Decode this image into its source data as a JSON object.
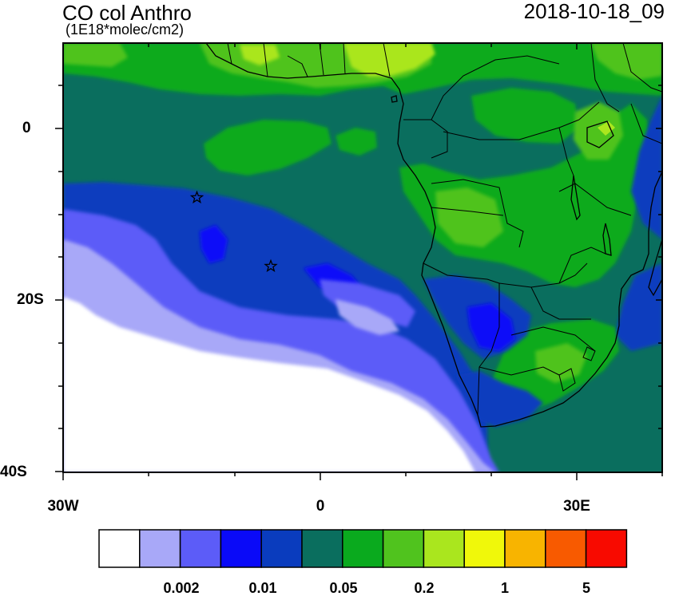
{
  "header": {
    "title": "CO col Anthro",
    "units": "(1E18*molec/cm2)",
    "valid_time": "2018-10-18_09"
  },
  "axes": {
    "y_labels": [
      {
        "value": 0,
        "text": "0"
      },
      {
        "value": -20,
        "text": "20S"
      },
      {
        "value": -40,
        "text": "40S"
      }
    ],
    "x_labels": [
      {
        "value": -30,
        "text": "30W"
      },
      {
        "value": 0,
        "text": "0"
      },
      {
        "value": 30,
        "text": "30E"
      }
    ],
    "lon_range": [
      -30,
      40
    ],
    "lat_range": [
      -40,
      10
    ]
  },
  "colorbar": {
    "colors": [
      "#ffffff",
      "#a8a8f8",
      "#5c5cf8",
      "#0a0af8",
      "#0a3cbe",
      "#0a6e5e",
      "#0aaa1e",
      "#50c31e",
      "#aae61e",
      "#f0f80a",
      "#f8b400",
      "#f85a00",
      "#f80a00"
    ],
    "labels": [
      {
        "after_box": 2,
        "text": "0.002"
      },
      {
        "after_box": 4,
        "text": "0.01"
      },
      {
        "after_box": 6,
        "text": "0.05"
      },
      {
        "after_box": 8,
        "text": "0.2"
      },
      {
        "after_box": 10,
        "text": "1"
      },
      {
        "after_box": 12,
        "text": "5"
      }
    ]
  },
  "markers": [
    {
      "name": "star-marker",
      "lon": -14.5,
      "lat": -8
    },
    {
      "name": "star-marker",
      "lon": -5.7,
      "lat": -16
    }
  ]
}
